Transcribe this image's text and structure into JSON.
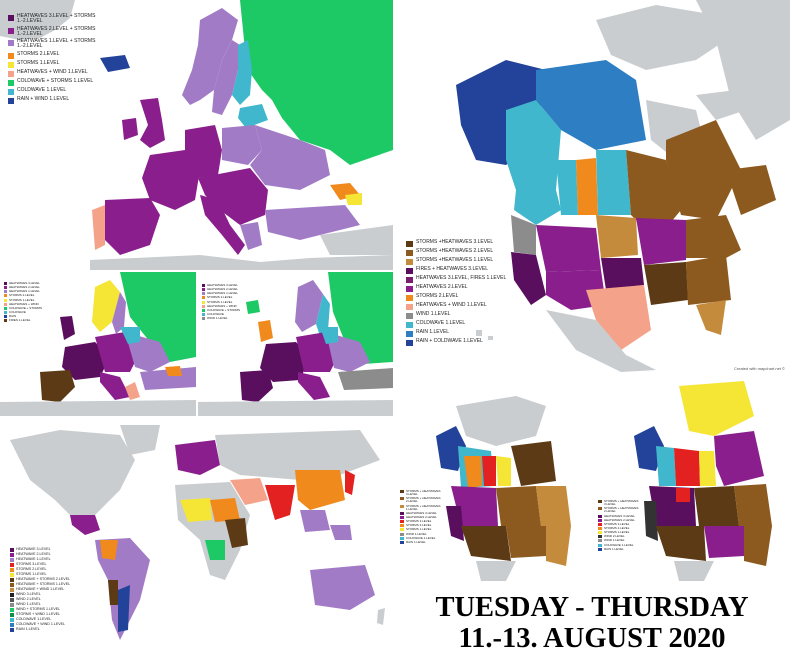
{
  "caption": {
    "line1": "TUESDAY - THURSDAY",
    "line2": "11.-13. AUGUST 2020"
  },
  "colors": {
    "water": "#ffffff",
    "land": "#c9cdd0",
    "border": "#ffffff",
    "dark_purple": "#5a0f5e",
    "purple": "#8a1e8c",
    "light_purple": "#a27bc6",
    "orange": "#f08a1c",
    "yellow": "#f5e534",
    "salmon": "#f4a38a",
    "green": "#1dc965",
    "teal": "#40b7cc",
    "navy": "#23439a",
    "brown_dark": "#5b3a15",
    "brown": "#8c5a1e",
    "tan": "#c48b3c",
    "red": "#e32121",
    "gray": "#8c8c8c"
  },
  "europe_day1": {
    "legend": [
      {
        "label": "HEATWAVES 3.LEVEL + STORMS 1.-2.LEVEL",
        "color": "#5a0f5e"
      },
      {
        "label": "HEATWAVES 2.LEVEL + STORMS 1.-2.LEVEL",
        "color": "#8a1e8c"
      },
      {
        "label": "HEATWAVES 1.LEVEL + STORMS 1.-2.LEVEL",
        "color": "#a27bc6"
      },
      {
        "label": "STORMS 2.LEVEL",
        "color": "#f08a1c"
      },
      {
        "label": "STORMS 1.LEVEL",
        "color": "#f5e534"
      },
      {
        "label": "HEATWAVES + WIND 1.LEVEL",
        "color": "#f4a38a"
      },
      {
        "label": "COLDWAVE + STORMS 1.LEVEL",
        "color": "#1dc965"
      },
      {
        "label": "COLDWAVE 1.LEVEL",
        "color": "#40b7cc"
      },
      {
        "label": "RAIN + WIND 1.LEVEL",
        "color": "#23439a"
      }
    ]
  },
  "europe_day2": {
    "legend": [
      {
        "label": "HEATWAVES 3.LEVEL",
        "color": "#5a0f5e"
      },
      {
        "label": "HEATWAVES 2.LEVEL",
        "color": "#8a1e8c"
      },
      {
        "label": "HEATWAVES 1.LEVEL",
        "color": "#a27bc6"
      },
      {
        "label": "STORMS 2.LEVEL",
        "color": "#f08a1c"
      },
      {
        "label": "STORMS 1.LEVEL",
        "color": "#f5e534"
      },
      {
        "label": "HEATWAVES + WIND",
        "color": "#f4a38a"
      },
      {
        "label": "COLDWAVE + STORMS",
        "color": "#1dc965"
      },
      {
        "label": "COLDWAVE",
        "color": "#40b7cc"
      },
      {
        "label": "RAIN",
        "color": "#23439a"
      },
      {
        "label": "FIRES 1.LEVEL",
        "color": "#5b3a15"
      }
    ]
  },
  "europe_day3": {
    "legend": [
      {
        "label": "HEATWAVES 3.LEVEL",
        "color": "#5a0f5e"
      },
      {
        "label": "HEATWAVES 2.LEVEL",
        "color": "#8a1e8c"
      },
      {
        "label": "HEATWAVES 1.LEVEL",
        "color": "#a27bc6"
      },
      {
        "label": "STORMS 2.LEVEL",
        "color": "#f08a1c"
      },
      {
        "label": "STORMS 1.LEVEL",
        "color": "#f5e534"
      },
      {
        "label": "HEATWAVES + WIND",
        "color": "#f4a38a"
      },
      {
        "label": "COLDWAVE + STORMS",
        "color": "#1dc965"
      },
      {
        "label": "COLDWAVE",
        "color": "#40b7cc"
      },
      {
        "label": "WIND 1.LEVEL",
        "color": "#8c8c8c"
      }
    ]
  },
  "north_america": {
    "credit": "Created with mapchart.net ©",
    "legend": [
      {
        "label": "STORMS +HEATWAVES 3.LEVEL",
        "color": "#5b3a15"
      },
      {
        "label": "STORMS +HEATWAVES 2.LEVEL",
        "color": "#8c5a1e"
      },
      {
        "label": "STORMS +HEATWAVES 1.LEVEL",
        "color": "#c48b3c"
      },
      {
        "label": "FIRES + HEATWAVES 3.LEVEL",
        "color": "#5a0f5e"
      },
      {
        "label": "HEATWAVES 3.LEVEL, FIRES 1.LEVEL",
        "color": "#7a1f6e"
      },
      {
        "label": "HEATWAVES 2.LEVEL",
        "color": "#8a1e8c"
      },
      {
        "label": "STORMS 2.LEVEL",
        "color": "#f08a1c"
      },
      {
        "label": "HEATWAVES + WIND 1.LEVEL",
        "color": "#f4a38a"
      },
      {
        "label": "WIND 1.LEVEL",
        "color": "#8c8c8c"
      },
      {
        "label": "COLDWAVE 1.LEVEL",
        "color": "#40b7cc"
      },
      {
        "label": "RAIN 1.LEVEL",
        "color": "#2d7ec2"
      },
      {
        "label": "RAIN + COLDWAVE 1.LEVEL",
        "color": "#23439a"
      }
    ]
  },
  "world": {
    "legend": [
      {
        "label": "HEATWAVE 3.LEVEL",
        "color": "#5a0f5e"
      },
      {
        "label": "HEATWAVE 2.LEVEL",
        "color": "#8a1e8c"
      },
      {
        "label": "HEATWAVE 1.LEVEL",
        "color": "#a27bc6"
      },
      {
        "label": "STORMS 3.LEVEL",
        "color": "#e32121"
      },
      {
        "label": "STORMS 2.LEVEL",
        "color": "#f08a1c"
      },
      {
        "label": "STORMS 1.LEVEL",
        "color": "#f5e534"
      },
      {
        "label": "HEATWAVE + STORMS 2.LEVEL",
        "color": "#5b3a15"
      },
      {
        "label": "HEATWAVE + STORMS 1.LEVEL",
        "color": "#8c5a1e"
      },
      {
        "label": "HEATWAVE + WIND 1.LEVEL",
        "color": "#c48b3c"
      },
      {
        "label": "WIND 3.LEVEL",
        "color": "#222222"
      },
      {
        "label": "WIND 2.LEVEL",
        "color": "#555555"
      },
      {
        "label": "WIND 1.LEVEL",
        "color": "#8c8c8c"
      },
      {
        "label": "WIND + STORMS 1.LEVEL",
        "color": "#1dc965"
      },
      {
        "label": "STORMS + WIND 1.LEVEL",
        "color": "#0f8f4a"
      },
      {
        "label": "COLDWAVE 1.LEVEL",
        "color": "#40b7cc"
      },
      {
        "label": "COLDWAVE + WIND 1.LEVEL",
        "color": "#2d7ec2"
      },
      {
        "label": "RAIN 1.LEVEL",
        "color": "#23439a"
      }
    ]
  },
  "na_day2": {
    "legend": [
      {
        "label": "STORMS + HEATWAVES 3.LEVEL",
        "color": "#5b3a15"
      },
      {
        "label": "STORMS + HEATWAVES 2.LEVEL",
        "color": "#8c5a1e"
      },
      {
        "label": "STORMS + HEATWAVES 1.LEVEL",
        "color": "#c48b3c"
      },
      {
        "label": "HEATWAVES 3.LEVEL",
        "color": "#5a0f5e"
      },
      {
        "label": "HEATWAVES 2.LEVEL",
        "color": "#8a1e8c"
      },
      {
        "label": "STORMS 3.LEVEL",
        "color": "#e32121"
      },
      {
        "label": "STORMS 2.LEVEL",
        "color": "#f08a1c"
      },
      {
        "label": "STORMS 1.LEVEL",
        "color": "#f5e534"
      },
      {
        "label": "WIND 1.LEVEL",
        "color": "#8c8c8c"
      },
      {
        "label": "COLDWAVE 1.LEVEL",
        "color": "#40b7cc"
      },
      {
        "label": "RAIN 1.LEVEL",
        "color": "#23439a"
      }
    ]
  },
  "na_day3": {
    "legend": [
      {
        "label": "STORMS + HEATWAVES 3.LEVEL",
        "color": "#5b3a15"
      },
      {
        "label": "STORMS + HEATWAVES 2.LEVEL",
        "color": "#8c5a1e"
      },
      {
        "label": "HEATWAVES 3.LEVEL",
        "color": "#5a0f5e"
      },
      {
        "label": "HEATWAVES 2.LEVEL",
        "color": "#8a1e8c"
      },
      {
        "label": "STORMS 3.LEVEL",
        "color": "#e32121"
      },
      {
        "label": "STORMS 2.LEVEL",
        "color": "#f08a1c"
      },
      {
        "label": "STORMS 1.LEVEL",
        "color": "#f5e534"
      },
      {
        "label": "WIND 2.LEVEL",
        "color": "#333333"
      },
      {
        "label": "WIND 1.LEVEL",
        "color": "#8c8c8c"
      },
      {
        "label": "COLDWAVE 1.LEVEL",
        "color": "#40b7cc"
      },
      {
        "label": "RAIN 1.LEVEL",
        "color": "#23439a"
      }
    ]
  }
}
